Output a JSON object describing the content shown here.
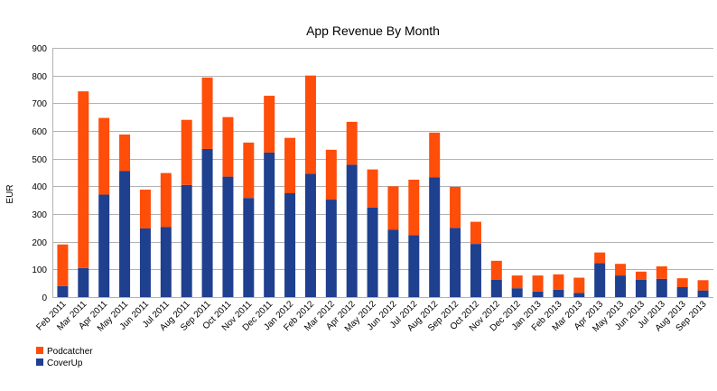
{
  "chart_data": {
    "type": "bar",
    "stacked": true,
    "title": "App Revenue By Month",
    "xlabel": "",
    "ylabel": "EUR",
    "ylim": [
      0,
      900
    ],
    "yticks": [
      0,
      100,
      200,
      300,
      400,
      500,
      600,
      700,
      800,
      900
    ],
    "grid": true,
    "legend_position": "bottom-left",
    "categories": [
      "Feb 2011",
      "Mar 2011",
      "Apr 2011",
      "May 2011",
      "Jun 2011",
      "Jul 2011",
      "Aug 2011",
      "Sep 2011",
      "Oct 2011",
      "Nov 2011",
      "Dec 2011",
      "Jan 2012",
      "Feb 2012",
      "Mar 2012",
      "Apr 2012",
      "May 2012",
      "Jun 2012",
      "Jul 2012",
      "Aug 2012",
      "Sep 2012",
      "Oct 2012",
      "Nov 2012",
      "Dec 2012",
      "Jan 2013",
      "Feb 2013",
      "Mar 2013",
      "Apr 2013",
      "May 2013",
      "Jun 2013",
      "Jul 2013",
      "Aug 2013",
      "Sep 2013"
    ],
    "series": [
      {
        "name": "CoverUp",
        "color": "#1f3f8f",
        "values": [
          40,
          105,
          370,
          455,
          248,
          253,
          405,
          535,
          435,
          358,
          522,
          375,
          445,
          352,
          478,
          323,
          243,
          224,
          432,
          250,
          192,
          63,
          32,
          20,
          27,
          15,
          123,
          78,
          62,
          66,
          36,
          24
        ]
      },
      {
        "name": "Podcatcher",
        "color": "#ff4d0a",
        "values": [
          150,
          638,
          277,
          132,
          140,
          195,
          235,
          258,
          215,
          200,
          205,
          200,
          355,
          180,
          155,
          138,
          157,
          200,
          162,
          148,
          80,
          68,
          46,
          58,
          55,
          55,
          38,
          42,
          30,
          45,
          32,
          37
        ]
      }
    ],
    "legend_order": [
      "Podcatcher",
      "CoverUp"
    ]
  }
}
